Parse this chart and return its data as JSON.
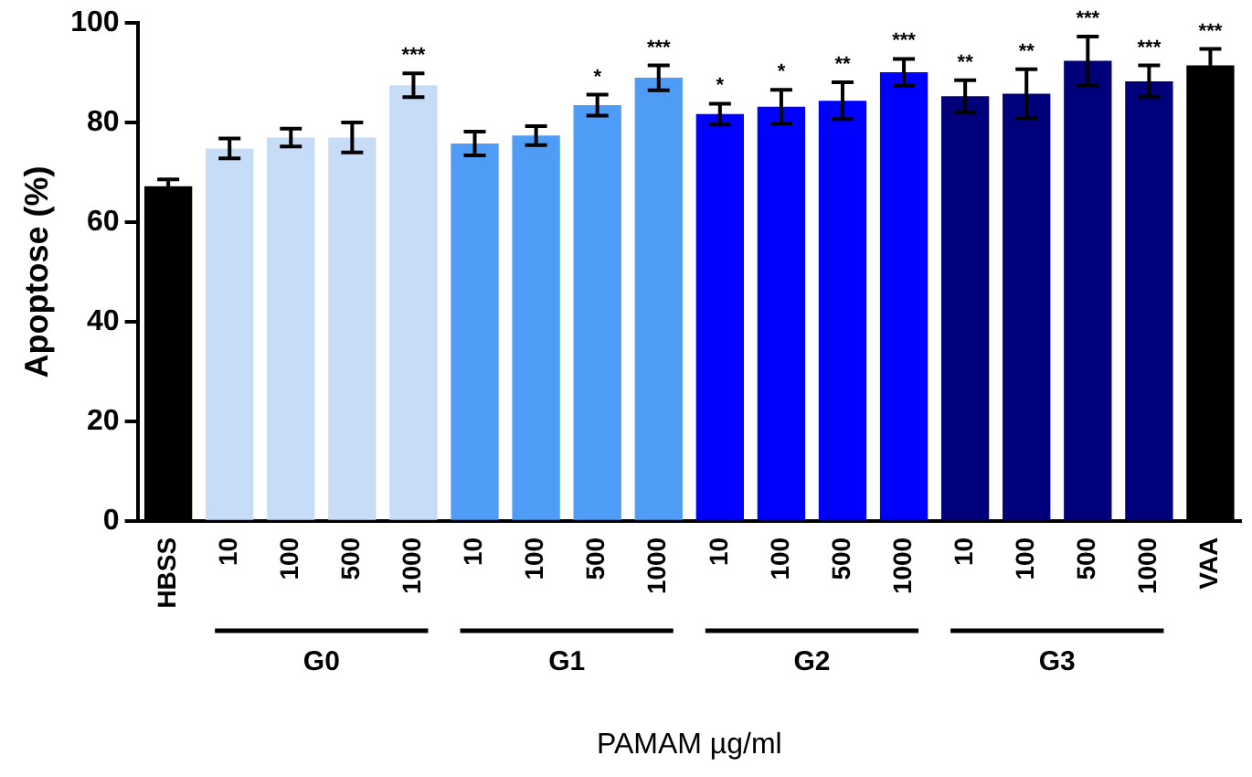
{
  "chart_data": {
    "type": "bar",
    "ylabel": "Apoptose (%)",
    "xlabel": "PAMAM µg/ml",
    "categories": [
      "HBSS",
      "10",
      "100",
      "500",
      "1000",
      "10",
      "100",
      "500",
      "1000",
      "10",
      "100",
      "500",
      "1000",
      "10",
      "100",
      "500",
      "1000",
      "VAA"
    ],
    "values": [
      67.2,
      74.8,
      77.0,
      77.0,
      87.5,
      75.8,
      77.4,
      83.5,
      89.0,
      81.7,
      83.2,
      84.4,
      90.1,
      85.3,
      85.8,
      92.4,
      88.3,
      91.5
    ],
    "errors": [
      1.4,
      2,
      1.8,
      3,
      2.4,
      2.4,
      1.9,
      2.1,
      2.5,
      2.1,
      3.4,
      3.7,
      2.7,
      3.2,
      4.9,
      4.9,
      3.2,
      3.3
    ],
    "colors": [
      "#000000",
      "#c6dcf7",
      "#c6dcf7",
      "#c6dcf7",
      "#c6dcf7",
      "#4f9cf7",
      "#4f9cf7",
      "#4f9cf7",
      "#4f9cf7",
      "#0000ff",
      "#0000ff",
      "#0000ff",
      "#0000ff",
      "#00007a",
      "#00007a",
      "#00007a",
      "#00007a",
      "#000000"
    ],
    "value_labels": [
      null,
      null,
      null,
      null,
      "***",
      null,
      null,
      "*",
      "***",
      "*",
      "*",
      "**",
      "***",
      "**",
      "**",
      "***",
      "***",
      "***"
    ],
    "annotations": [
      "G0",
      "G1",
      "G2",
      "G3"
    ],
    "ylim": [
      0,
      100
    ],
    "yticks": [
      0,
      20,
      40,
      60,
      80,
      100
    ],
    "grid": false,
    "legend": false
  }
}
